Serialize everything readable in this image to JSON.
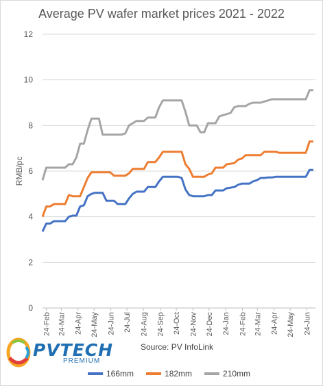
{
  "chart_data": {
    "type": "line",
    "title": "Average PV wafer market prices 2021 - 2022",
    "ylabel": "RMB/pc",
    "xlabel": "",
    "ylim": [
      0,
      12
    ],
    "yticks": [
      0,
      2,
      4,
      6,
      8,
      10,
      12
    ],
    "grid": true,
    "legend_position": "bottom",
    "x_tick_labels": [
      "24-Feb",
      "24-Mar",
      "24-Apr",
      "24-May",
      "24-Jun",
      "24-Jul",
      "24-Aug",
      "24-Sep",
      "24-Oct",
      "24-Nov",
      "24-Dec",
      "24-Jan",
      "24-Feb",
      "24-Mar",
      "24-Apr",
      "24-May",
      "24-Jun"
    ],
    "x_start": "2021-02-17",
    "x_end": "2022-07-10",
    "series": [
      {
        "name": "166mm",
        "color": "#4472C4",
        "points": [
          [
            "2021-02-17",
            3.35
          ],
          [
            "2021-02-24",
            3.7
          ],
          [
            "2021-03-03",
            3.7
          ],
          [
            "2021-03-10",
            3.8
          ],
          [
            "2021-03-31",
            3.8
          ],
          [
            "2021-04-07",
            4.0
          ],
          [
            "2021-04-14",
            4.05
          ],
          [
            "2021-04-21",
            4.05
          ],
          [
            "2021-04-28",
            4.45
          ],
          [
            "2021-05-05",
            4.5
          ],
          [
            "2021-05-12",
            4.9
          ],
          [
            "2021-05-19",
            5.0
          ],
          [
            "2021-05-26",
            5.05
          ],
          [
            "2021-06-09",
            5.05
          ],
          [
            "2021-06-16",
            4.7
          ],
          [
            "2021-06-30",
            4.7
          ],
          [
            "2021-07-07",
            4.55
          ],
          [
            "2021-07-21",
            4.55
          ],
          [
            "2021-07-28",
            4.8
          ],
          [
            "2021-08-04",
            5.0
          ],
          [
            "2021-08-11",
            5.1
          ],
          [
            "2021-08-25",
            5.1
          ],
          [
            "2021-09-01",
            5.3
          ],
          [
            "2021-09-15",
            5.3
          ],
          [
            "2021-09-22",
            5.55
          ],
          [
            "2021-09-29",
            5.75
          ],
          [
            "2021-10-27",
            5.75
          ],
          [
            "2021-11-03",
            5.7
          ],
          [
            "2021-11-10",
            5.2
          ],
          [
            "2021-11-17",
            4.95
          ],
          [
            "2021-11-24",
            4.9
          ],
          [
            "2021-12-15",
            4.9
          ],
          [
            "2021-12-22",
            4.95
          ],
          [
            "2021-12-29",
            4.95
          ],
          [
            "2022-01-05",
            5.15
          ],
          [
            "2022-01-19",
            5.15
          ],
          [
            "2022-01-26",
            5.25
          ],
          [
            "2022-02-09",
            5.3
          ],
          [
            "2022-02-16",
            5.4
          ],
          [
            "2022-02-23",
            5.45
          ],
          [
            "2022-03-09",
            5.45
          ],
          [
            "2022-03-16",
            5.55
          ],
          [
            "2022-03-23",
            5.6
          ],
          [
            "2022-03-30",
            5.7
          ],
          [
            "2022-04-06",
            5.7
          ],
          [
            "2022-04-13",
            5.72
          ],
          [
            "2022-04-20",
            5.72
          ],
          [
            "2022-04-27",
            5.75
          ],
          [
            "2022-06-15",
            5.75
          ],
          [
            "2022-06-22",
            5.75
          ],
          [
            "2022-06-29",
            6.05
          ],
          [
            "2022-07-06",
            6.05
          ]
        ]
      },
      {
        "name": "182mm",
        "color": "#ED7D31",
        "points": [
          [
            "2021-02-17",
            4.0
          ],
          [
            "2021-02-24",
            4.45
          ],
          [
            "2021-03-03",
            4.45
          ],
          [
            "2021-03-10",
            4.55
          ],
          [
            "2021-03-31",
            4.55
          ],
          [
            "2021-04-07",
            4.95
          ],
          [
            "2021-04-14",
            4.9
          ],
          [
            "2021-04-28",
            4.9
          ],
          [
            "2021-05-05",
            5.3
          ],
          [
            "2021-05-12",
            5.7
          ],
          [
            "2021-05-19",
            5.95
          ],
          [
            "2021-06-23",
            5.95
          ],
          [
            "2021-06-30",
            5.8
          ],
          [
            "2021-07-21",
            5.8
          ],
          [
            "2021-07-28",
            5.9
          ],
          [
            "2021-08-04",
            6.1
          ],
          [
            "2021-08-25",
            6.1
          ],
          [
            "2021-09-01",
            6.4
          ],
          [
            "2021-09-15",
            6.4
          ],
          [
            "2021-09-22",
            6.6
          ],
          [
            "2021-09-29",
            6.85
          ],
          [
            "2021-10-27",
            6.85
          ],
          [
            "2021-11-03",
            6.85
          ],
          [
            "2021-11-10",
            6.3
          ],
          [
            "2021-11-17",
            6.1
          ],
          [
            "2021-11-24",
            5.75
          ],
          [
            "2021-12-15",
            5.75
          ],
          [
            "2021-12-22",
            5.85
          ],
          [
            "2021-12-29",
            5.9
          ],
          [
            "2022-01-05",
            6.15
          ],
          [
            "2022-01-19",
            6.15
          ],
          [
            "2022-01-26",
            6.3
          ],
          [
            "2022-02-09",
            6.35
          ],
          [
            "2022-02-16",
            6.5
          ],
          [
            "2022-02-23",
            6.55
          ],
          [
            "2022-03-02",
            6.7
          ],
          [
            "2022-03-30",
            6.7
          ],
          [
            "2022-04-06",
            6.85
          ],
          [
            "2022-04-27",
            6.85
          ],
          [
            "2022-05-04",
            6.8
          ],
          [
            "2022-06-22",
            6.8
          ],
          [
            "2022-06-29",
            7.3
          ],
          [
            "2022-07-06",
            7.3
          ]
        ]
      },
      {
        "name": "210mm",
        "color": "#A5A5A5",
        "points": [
          [
            "2021-02-17",
            5.6
          ],
          [
            "2021-02-24",
            6.15
          ],
          [
            "2021-03-31",
            6.15
          ],
          [
            "2021-04-07",
            6.3
          ],
          [
            "2021-04-14",
            6.3
          ],
          [
            "2021-04-21",
            6.6
          ],
          [
            "2021-04-28",
            7.2
          ],
          [
            "2021-05-05",
            7.2
          ],
          [
            "2021-05-12",
            7.8
          ],
          [
            "2021-05-19",
            8.3
          ],
          [
            "2021-06-02",
            8.3
          ],
          [
            "2021-06-09",
            7.6
          ],
          [
            "2021-07-14",
            7.6
          ],
          [
            "2021-07-21",
            7.65
          ],
          [
            "2021-07-28",
            8.0
          ],
          [
            "2021-08-04",
            8.1
          ],
          [
            "2021-08-11",
            8.2
          ],
          [
            "2021-08-25",
            8.2
          ],
          [
            "2021-09-01",
            8.35
          ],
          [
            "2021-09-15",
            8.35
          ],
          [
            "2021-09-22",
            8.8
          ],
          [
            "2021-09-29",
            9.1
          ],
          [
            "2021-10-27",
            9.1
          ],
          [
            "2021-11-03",
            9.1
          ],
          [
            "2021-11-10",
            8.6
          ],
          [
            "2021-11-17",
            8.0
          ],
          [
            "2021-11-24",
            8.0
          ],
          [
            "2021-12-01",
            8.0
          ],
          [
            "2021-12-08",
            7.7
          ],
          [
            "2021-12-15",
            7.7
          ],
          [
            "2021-12-22",
            8.1
          ],
          [
            "2022-01-05",
            8.1
          ],
          [
            "2022-01-12",
            8.4
          ],
          [
            "2022-01-19",
            8.45
          ],
          [
            "2022-02-02",
            8.55
          ],
          [
            "2022-02-09",
            8.8
          ],
          [
            "2022-02-16",
            8.85
          ],
          [
            "2022-03-02",
            8.85
          ],
          [
            "2022-03-09",
            8.95
          ],
          [
            "2022-03-16",
            9.0
          ],
          [
            "2022-03-30",
            9.0
          ],
          [
            "2022-04-06",
            9.05
          ],
          [
            "2022-04-13",
            9.1
          ],
          [
            "2022-04-20",
            9.15
          ],
          [
            "2022-06-22",
            9.15
          ],
          [
            "2022-06-29",
            9.55
          ],
          [
            "2022-07-06",
            9.55
          ]
        ]
      }
    ]
  },
  "source_text": "Source: PV InfoLink",
  "logo": {
    "word": "PVTECH",
    "sub": "PREMIUM",
    "color": "#1f6fb2"
  }
}
